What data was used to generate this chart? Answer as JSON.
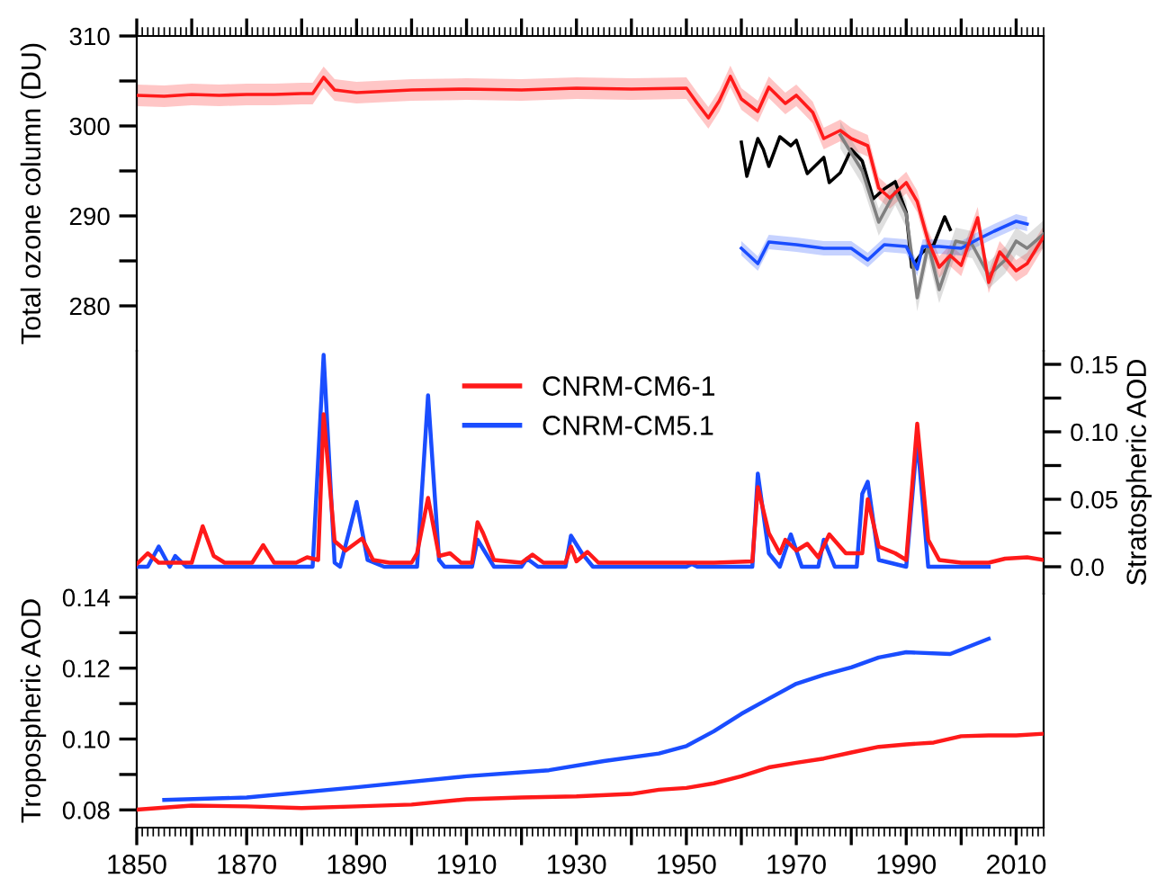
{
  "chart_data": [
    {
      "type": "line",
      "ylabel": "Total ozone column (DU)",
      "xlim": [
        1850,
        2015
      ],
      "ylim": [
        275,
        310
      ],
      "xticks": [
        1850,
        {
          "value": 1860,
          "label": null
        },
        1870,
        {
          "value": 1880,
          "label": null
        },
        1890,
        {
          "value": 1900,
          "label": null
        },
        1910,
        {
          "value": 1920,
          "label": null
        },
        1930,
        {
          "value": 1940,
          "label": null
        },
        1950,
        {
          "value": 1960,
          "label": null
        },
        1970,
        {
          "value": 1980,
          "label": null
        },
        1990,
        {
          "value": 2000,
          "label": null
        },
        2010
      ],
      "yticks": [
        280,
        {
          "value": 285,
          "label": null
        },
        290,
        {
          "value": 295,
          "label": null
        },
        300,
        {
          "value": 305,
          "label": null
        },
        310
      ],
      "tick_labels": "y",
      "series": [
        {
          "color": "#ff1a1a",
          "x": [
            1850,
            1855,
            1860,
            1865,
            1870,
            1875,
            1880,
            1882,
            1884,
            1886,
            1890,
            1900,
            1910,
            1920,
            1930,
            1940,
            1950,
            1952,
            1954,
            1956,
            1958,
            1960,
            1963,
            1965,
            1968,
            1970,
            1973,
            1975,
            1978,
            1980,
            1983,
            1985,
            1987,
            1990,
            1992,
            1994,
            1996,
            1998,
            2000,
            2003,
            2005,
            2007,
            2010,
            2012,
            2015
          ],
          "values": [
            303.4,
            303.3,
            303.5,
            303.4,
            303.5,
            303.5,
            303.6,
            303.6,
            305.4,
            304.0,
            303.7,
            304.0,
            304.1,
            304.0,
            304.2,
            304.1,
            304.2,
            302.5,
            300.9,
            302.8,
            305.5,
            303.0,
            301.6,
            304.3,
            302.5,
            303.4,
            301.5,
            298.6,
            299.5,
            298.6,
            297.8,
            293.1,
            292.0,
            293.7,
            291.6,
            287.2,
            284.3,
            285.6,
            284.5,
            289.8,
            282.6,
            286.0,
            283.9,
            284.7,
            287.7
          ],
          "lower": [
            302.2,
            302.1,
            302.3,
            302.2,
            302.3,
            302.3,
            302.4,
            302.4,
            304.2,
            302.8,
            302.5,
            302.8,
            302.9,
            302.8,
            303.0,
            302.9,
            303.0,
            301.3,
            299.7,
            301.6,
            304.3,
            301.8,
            300.4,
            303.1,
            301.3,
            302.2,
            300.3,
            297.4,
            298.3,
            297.4,
            296.6,
            291.9,
            290.8,
            292.5,
            290.4,
            286.0,
            283.1,
            284.4,
            283.3,
            288.6,
            281.4,
            284.8,
            282.7,
            283.5,
            286.5
          ],
          "upper": [
            304.6,
            304.5,
            304.7,
            304.6,
            304.7,
            304.7,
            304.8,
            304.8,
            306.6,
            305.2,
            304.9,
            305.2,
            305.3,
            305.2,
            305.4,
            305.3,
            305.4,
            303.7,
            302.1,
            304.0,
            306.7,
            304.2,
            302.8,
            305.5,
            303.7,
            304.6,
            302.7,
            299.8,
            300.7,
            299.8,
            299.0,
            294.3,
            293.2,
            294.9,
            292.8,
            288.4,
            285.5,
            286.8,
            285.7,
            291.0,
            283.8,
            287.2,
            285.1,
            285.9,
            288.9
          ]
        },
        {
          "color": "#1a4dff",
          "x": [
            1960,
            1963,
            1965,
            1970,
            1975,
            1980,
            1983,
            1986,
            1990,
            1992,
            1993,
            1996,
            2000,
            2003,
            2006,
            2010,
            2012
          ],
          "values": [
            286.4,
            284.7,
            287.1,
            286.8,
            286.4,
            286.4,
            285.1,
            286.8,
            286.6,
            284.1,
            286.6,
            286.6,
            286.4,
            287.4,
            288.3,
            289.4,
            289.1
          ],
          "lower": [
            285.6,
            283.9,
            286.3,
            286.0,
            285.6,
            285.6,
            284.3,
            286.0,
            285.8,
            283.3,
            285.8,
            285.8,
            285.6,
            286.6,
            287.5,
            288.6,
            288.3
          ],
          "upper": [
            287.2,
            285.5,
            287.9,
            287.6,
            287.2,
            287.2,
            285.9,
            287.6,
            287.4,
            284.9,
            287.4,
            287.4,
            287.2,
            288.2,
            289.1,
            290.2,
            289.9
          ]
        },
        {
          "color": "#808080",
          "x": [
            1978,
            1980,
            1982,
            1985,
            1988,
            1990,
            1992,
            1994,
            1996,
            1999,
            2002,
            2005,
            2008,
            2010,
            2012,
            2015
          ],
          "values": [
            299.0,
            297.0,
            295.0,
            289.3,
            292.7,
            290.2,
            280.9,
            286.8,
            281.8,
            287.2,
            286.8,
            283.4,
            285.1,
            287.2,
            286.4,
            288.0
          ],
          "lower": [
            297.5,
            295.5,
            293.5,
            287.8,
            291.2,
            288.7,
            279.4,
            285.3,
            280.3,
            285.7,
            285.3,
            281.9,
            283.6,
            285.7,
            284.9,
            286.5
          ],
          "upper": [
            300.5,
            298.5,
            296.5,
            290.8,
            294.2,
            291.7,
            282.4,
            288.3,
            283.3,
            288.7,
            288.3,
            284.9,
            286.6,
            288.7,
            287.9,
            289.5
          ]
        },
        {
          "color": "#000000",
          "x": [
            1960,
            1961,
            1963,
            1964,
            1965,
            1967,
            1969,
            1970,
            1972,
            1975,
            1976,
            1978,
            1980,
            1982,
            1984,
            1986,
            1988,
            1990,
            1991,
            1993,
            1995,
            1997,
            1998
          ],
          "values": [
            298.2,
            294.4,
            298.6,
            297.4,
            295.5,
            298.8,
            297.8,
            298.4,
            294.7,
            296.5,
            293.7,
            294.8,
            297.4,
            296.1,
            291.9,
            293.0,
            293.8,
            290.4,
            284.3,
            286.0,
            286.8,
            289.9,
            288.5
          ]
        }
      ]
    },
    {
      "type": "line",
      "xlim": [
        1850,
        2015
      ],
      "y2label": "Stratospheric AOD",
      "y2lim": [
        -0.02,
        0.16
      ],
      "y2ticks": [
        {
          "value": 0.0,
          "label": "0.0"
        },
        {
          "value": 0.025,
          "label": null
        },
        0.05,
        {
          "value": 0.075,
          "label": null
        },
        {
          "value": 0.1,
          "label": "0.10"
        },
        {
          "value": 0.125,
          "label": null
        },
        0.15
      ],
      "tick_labels": "y2",
      "legend": "top",
      "series": [
        {
          "name": "CNRM-CM6-1",
          "color": "#ff1a1a",
          "axis": "y2",
          "x": [
            1850,
            1852,
            1854,
            1860,
            1862,
            1864,
            1866,
            1871,
            1873,
            1875,
            1879,
            1881,
            1883,
            1884,
            1886,
            1888,
            1891,
            1893,
            1896,
            1900,
            1901,
            1903,
            1905,
            1907,
            1909,
            1911,
            1912,
            1913,
            1915,
            1920,
            1922,
            1924,
            1928,
            1929,
            1930,
            1932,
            1934,
            1955,
            1962,
            1963,
            1965,
            1967,
            1968,
            1970,
            1972,
            1974,
            1976,
            1979,
            1982,
            1983,
            1985,
            1988,
            1990,
            1992,
            1994,
            1996,
            2000,
            2005,
            2008,
            2012,
            2015
          ],
          "values": [
            0.002,
            0.01,
            0.003,
            0.003,
            0.03,
            0.008,
            0.003,
            0.003,
            0.016,
            0.003,
            0.003,
            0.007,
            0.005,
            0.113,
            0.019,
            0.012,
            0.021,
            0.005,
            0.003,
            0.003,
            0.01,
            0.051,
            0.008,
            0.01,
            0.003,
            0.003,
            0.033,
            0.025,
            0.005,
            0.003,
            0.009,
            0.003,
            0.003,
            0.015,
            0.004,
            0.011,
            0.003,
            0.003,
            0.004,
            0.059,
            0.025,
            0.01,
            0.02,
            0.012,
            0.017,
            0.007,
            0.024,
            0.01,
            0.01,
            0.05,
            0.015,
            0.01,
            0.005,
            0.106,
            0.02,
            0.005,
            0.003,
            0.003,
            0.006,
            0.007,
            0.005
          ]
        },
        {
          "name": "CNRM-CM5.1",
          "color": "#1a4dff",
          "axis": "y2",
          "x": [
            1850,
            1852,
            1854,
            1856,
            1857,
            1859,
            1882,
            1884,
            1886,
            1887,
            1890,
            1892,
            1895,
            1901,
            1903,
            1905,
            1906,
            1911,
            1912,
            1915,
            1920,
            1921,
            1923,
            1928,
            1929,
            1931,
            1933,
            1950,
            1951,
            1952,
            1962,
            1963,
            1965,
            1967,
            1969,
            1971,
            1974,
            1975,
            1977,
            1981,
            1982,
            1983,
            1985,
            1990,
            1992,
            1994,
            2005
          ],
          "values": [
            0.0,
            0.0,
            0.015,
            0.0,
            0.008,
            0.0,
            0.0,
            0.157,
            0.003,
            0.0,
            0.048,
            0.005,
            0.0,
            0.0,
            0.127,
            0.005,
            0.0,
            0.0,
            0.02,
            0.0,
            0.0,
            0.006,
            0.0,
            0.0,
            0.023,
            0.01,
            0.0,
            0.0,
            0.002,
            0.0,
            0.0,
            0.069,
            0.01,
            0.0,
            0.024,
            0.0,
            0.0,
            0.02,
            0.0,
            0.0,
            0.054,
            0.063,
            0.005,
            0.0,
            0.095,
            0.0,
            0.0
          ]
        }
      ]
    },
    {
      "type": "line",
      "ylabel": "Tropospheric AOD",
      "xlim": [
        1850,
        2015
      ],
      "ylim": [
        0.075,
        0.141
      ],
      "xticks": [
        1850,
        {
          "value": 1860,
          "label": null
        },
        1870,
        {
          "value": 1880,
          "label": null
        },
        1890,
        {
          "value": 1900,
          "label": null
        },
        1910,
        {
          "value": 1920,
          "label": null
        },
        1930,
        {
          "value": 1940,
          "label": null
        },
        1950,
        {
          "value": 1960,
          "label": null
        },
        1970,
        {
          "value": 1980,
          "label": null
        },
        1990,
        {
          "value": 2000,
          "label": null
        },
        2010
      ],
      "yticks": [
        {
          "value": 0.08,
          "label": "0.08"
        },
        {
          "value": 0.09,
          "label": null
        },
        {
          "value": 0.1,
          "label": "0.10"
        },
        {
          "value": 0.11,
          "label": null
        },
        {
          "value": 0.12,
          "label": "0.12"
        },
        {
          "value": 0.13,
          "label": null
        },
        {
          "value": 0.14,
          "label": "0.14"
        }
      ],
      "series": [
        {
          "color": "#ff1a1a",
          "x": [
            1850,
            1860,
            1870,
            1880,
            1890,
            1900,
            1910,
            1920,
            1930,
            1940,
            1945,
            1950,
            1955,
            1960,
            1965,
            1970,
            1975,
            1980,
            1985,
            1990,
            1995,
            2000,
            2005,
            2010,
            2015
          ],
          "values": [
            0.0801,
            0.0812,
            0.081,
            0.0805,
            0.081,
            0.0815,
            0.083,
            0.0835,
            0.0838,
            0.0845,
            0.0857,
            0.0862,
            0.0875,
            0.0895,
            0.092,
            0.0933,
            0.0945,
            0.0962,
            0.0978,
            0.0985,
            0.099,
            0.1008,
            0.101,
            0.101,
            0.1015
          ]
        },
        {
          "color": "#1a4dff",
          "x": [
            1855,
            1870,
            1890,
            1910,
            1925,
            1935,
            1945,
            1950,
            1955,
            1960,
            1965,
            1970,
            1975,
            1980,
            1985,
            1990,
            1998,
            2005
          ],
          "values": [
            0.0828,
            0.0835,
            0.0864,
            0.0895,
            0.0912,
            0.0938,
            0.0959,
            0.098,
            0.1022,
            0.1071,
            0.1114,
            0.1156,
            0.1181,
            0.1202,
            0.123,
            0.1245,
            0.124,
            0.1283
          ]
        }
      ]
    }
  ]
}
